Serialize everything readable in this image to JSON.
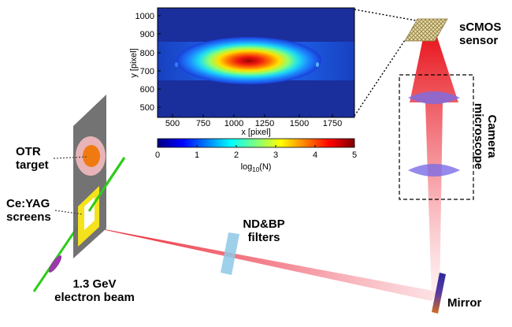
{
  "labels": {
    "otr_target_1": "OTR",
    "otr_target_2": "target",
    "ceyag_1": "Ce:YAG",
    "ceyag_2": "screens",
    "beam_1": "1.3 GeV",
    "beam_2": "electron beam",
    "filters_1": "ND&BP",
    "filters_2": "filters",
    "sensor_1": "sCMOS",
    "sensor_2": "sensor",
    "camera": "Camera\nmicroscope",
    "mirror": "Mirror"
  },
  "image_plot": {
    "y_ticks": [
      "1000",
      "900",
      "800",
      "700",
      "600",
      "500"
    ],
    "x_ticks": [
      "500",
      "750",
      "1000",
      "1250",
      "1500",
      "1750"
    ],
    "x_label": "x [pixel]",
    "y_label": "y [pixel]"
  },
  "colorbar": {
    "ticks": [
      "0",
      "1",
      "2",
      "3",
      "4",
      "5"
    ],
    "label": "log10(N)"
  },
  "colors": {
    "plate": "#6b6b6b",
    "otr_ring": "#e8b4b8",
    "otr_core": "#f07a10",
    "ceyag": "#f4e21c",
    "beam": "#2ecc1a",
    "electron_bunch": "#9a3aa8",
    "filter": "#8ec8e6",
    "lens": "#7a6de6",
    "mirror": "#3a2a9c",
    "light": "#e8141c"
  }
}
